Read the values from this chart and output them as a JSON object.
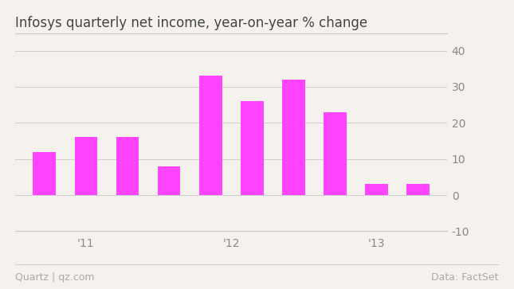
{
  "title": "Infosys quarterly net income, year-on-year % change",
  "values": [
    12,
    16,
    16,
    8,
    33,
    26,
    32,
    23,
    3,
    3
  ],
  "bar_color": "#ff44ff",
  "ylim": [
    -10,
    42
  ],
  "yticks": [
    -10,
    0,
    10,
    20,
    30,
    40
  ],
  "ytick_labels": [
    "-10",
    "0",
    "10",
    "20",
    "30",
    "40"
  ],
  "year_labels": [
    "'11",
    "'12",
    "'13"
  ],
  "year_label_bar_indices": [
    1,
    4.5,
    8
  ],
  "footer_left": "Quartz | qz.com",
  "footer_right": "Data: FactSet",
  "background_color": "#f5f2ed",
  "grid_color": "#cccccc",
  "title_fontsize": 12,
  "tick_fontsize": 10,
  "footer_fontsize": 9,
  "bar_width": 0.55,
  "n_bars": 10,
  "xlim_left": -0.7,
  "xlim_right": 9.7
}
